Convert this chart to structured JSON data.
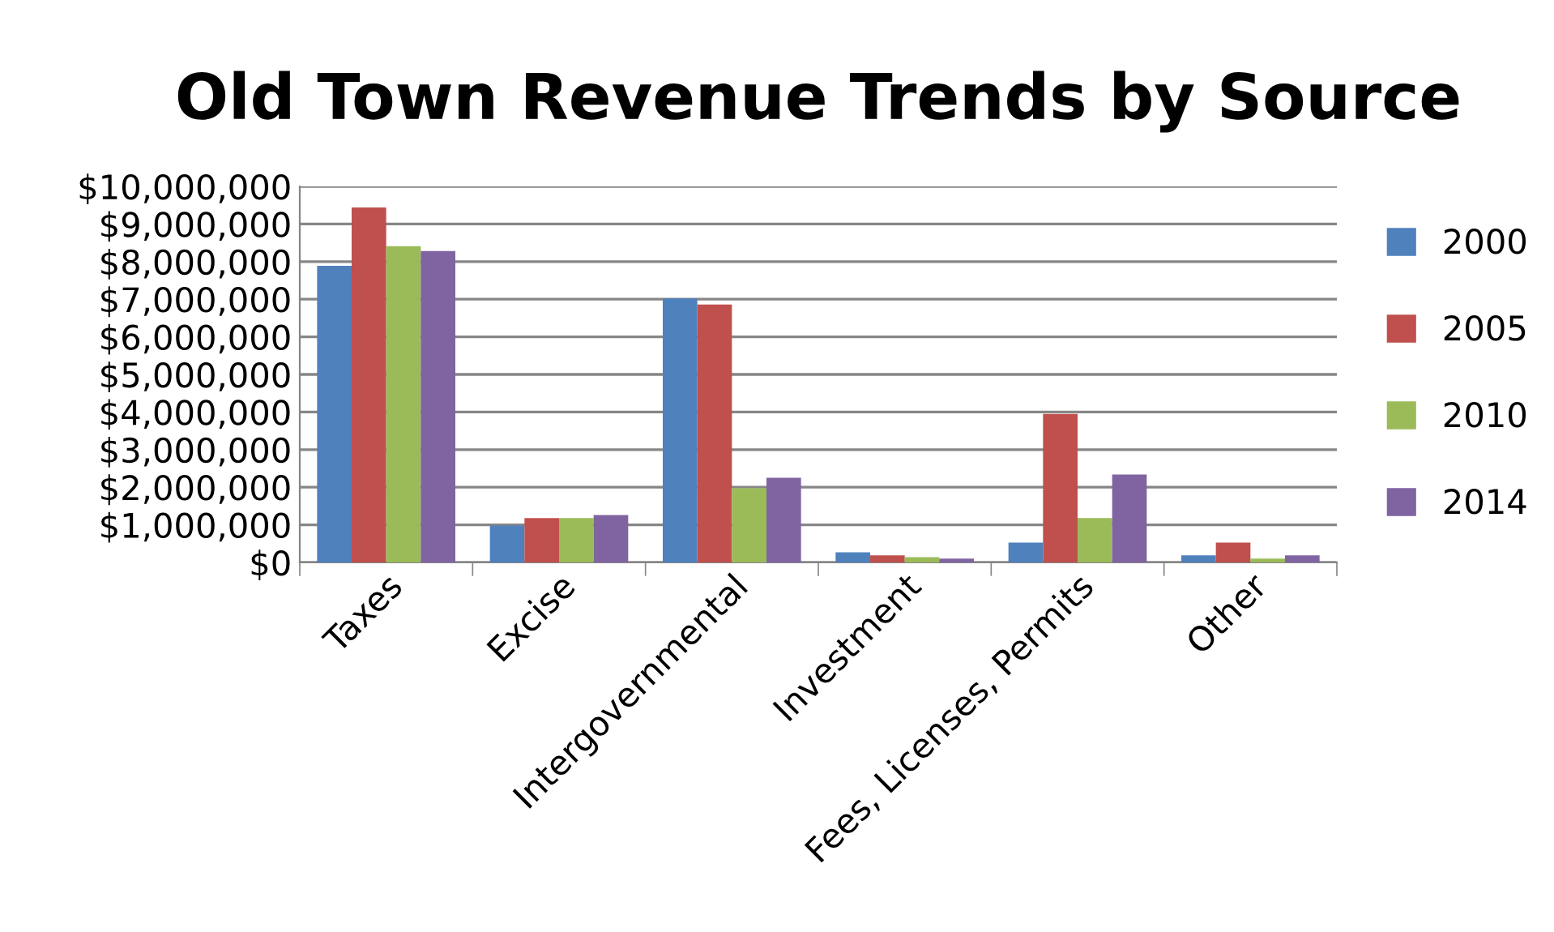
{
  "chart_data": {
    "type": "bar",
    "title": "Old Town Revenue Trends by Source",
    "categories": [
      "Taxes",
      "Excise",
      "Intergovernmental",
      "Investment",
      "Fees, Licenses, Permits",
      "Other"
    ],
    "series": [
      {
        "name": "2000",
        "color": "#4f81bd",
        "values": [
          7890000,
          980000,
          7020000,
          270000,
          530000,
          190000
        ]
      },
      {
        "name": "2005",
        "color": "#c0504d",
        "values": [
          9440000,
          1180000,
          6860000,
          190000,
          3950000,
          530000
        ]
      },
      {
        "name": "2010",
        "color": "#9bbb59",
        "values": [
          8410000,
          1180000,
          1970000,
          140000,
          1180000,
          100000
        ]
      },
      {
        "name": "2014",
        "color": "#8064a2",
        "values": [
          8280000,
          1260000,
          2250000,
          100000,
          2340000,
          190000
        ]
      }
    ],
    "ylim": [
      0,
      10000000
    ],
    "yticks": [
      {
        "value": 0,
        "label": "$0"
      },
      {
        "value": 1000000,
        "label": "$1,000,000"
      },
      {
        "value": 2000000,
        "label": "$2,000,000"
      },
      {
        "value": 3000000,
        "label": "$3,000,000"
      },
      {
        "value": 4000000,
        "label": "$4,000,000"
      },
      {
        "value": 5000000,
        "label": "$5,000,000"
      },
      {
        "value": 6000000,
        "label": "$6,000,000"
      },
      {
        "value": 7000000,
        "label": "$7,000,000"
      },
      {
        "value": 8000000,
        "label": "$8,000,000"
      },
      {
        "value": 9000000,
        "label": "$9,000,000"
      },
      {
        "value": 10000000,
        "label": "$10,000,000"
      }
    ],
    "grid": "y",
    "legend": "right"
  }
}
